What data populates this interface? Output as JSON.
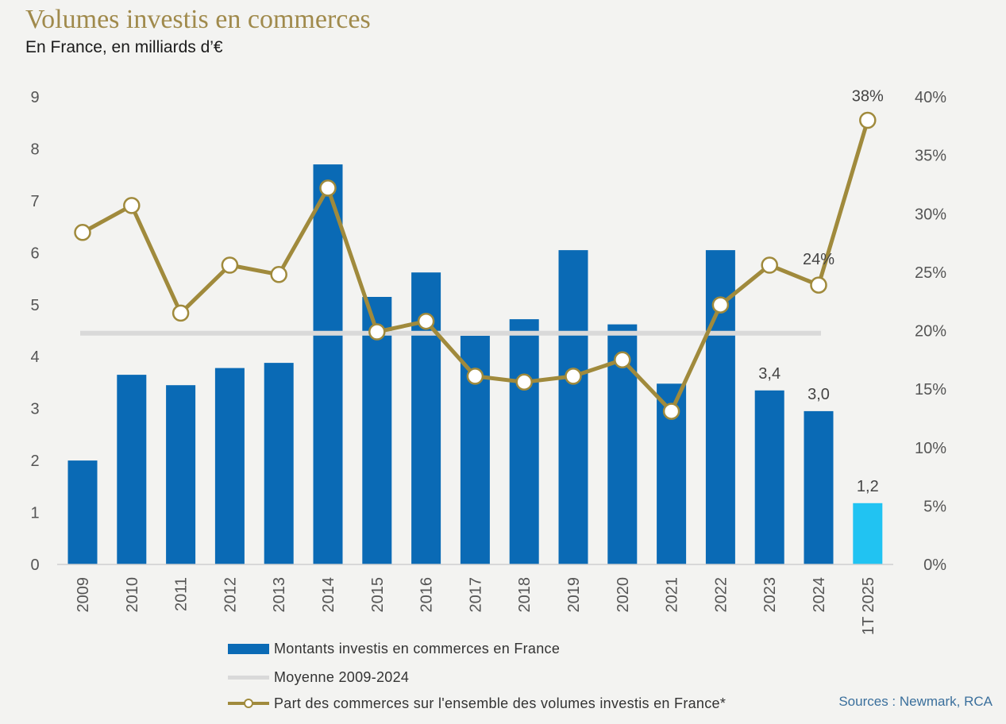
{
  "title": "Volumes investis en commerces",
  "subtitle": "En France, en milliards d’€",
  "source": "Sources : Newmark, RCA",
  "colors": {
    "bars": "#0a6ab5",
    "bar_highlight": "#21c3f2",
    "line": "#a08a3c",
    "average": "#d9d9d9",
    "title": "#a08a4c"
  },
  "chart_data": {
    "type": "bar",
    "categories": [
      "2009",
      "2010",
      "2011",
      "2012",
      "2013",
      "2014",
      "2015",
      "2016",
      "2017",
      "2018",
      "2019",
      "2020",
      "2021",
      "2022",
      "2023",
      "2024",
      "1T 2025"
    ],
    "ylim": [
      0,
      9
    ],
    "y_ticks": [
      "0",
      "1",
      "2",
      "3",
      "4",
      "5",
      "6",
      "7",
      "8",
      "9"
    ],
    "y2lim": [
      0,
      40
    ],
    "y2_ticks": [
      "0%",
      "5%",
      "10%",
      "15%",
      "20%",
      "25%",
      "30%",
      "35%",
      "40%"
    ],
    "legend_position": "bottom",
    "series": [
      {
        "name": "Montants investis en commerces en France",
        "type": "bar",
        "axis": "left",
        "values": [
          2.0,
          3.65,
          3.45,
          3.78,
          3.88,
          7.7,
          5.15,
          5.62,
          4.4,
          4.72,
          6.05,
          4.62,
          3.48,
          6.05,
          3.35,
          2.95,
          1.18
        ]
      },
      {
        "name": "Moyenne 2009-2024",
        "type": "line",
        "axis": "left",
        "value": 4.45,
        "x_range": [
          "2009",
          "2024"
        ]
      },
      {
        "name": "Part des commerces sur l'ensemble des volumes investis en France*",
        "type": "line",
        "axis": "right",
        "unit": "%",
        "values": [
          28.4,
          30.7,
          21.5,
          25.6,
          24.8,
          32.2,
          19.9,
          20.8,
          16.1,
          15.6,
          16.1,
          17.5,
          13.1,
          22.2,
          25.6,
          23.9,
          38.0
        ]
      }
    ],
    "data_labels": [
      {
        "series": 0,
        "category": "2023",
        "text": "3,4"
      },
      {
        "series": 0,
        "category": "2024",
        "text": "3,0"
      },
      {
        "series": 0,
        "category": "1T 2025",
        "text": "1,2"
      },
      {
        "series": 2,
        "category": "2024",
        "text": "24%"
      },
      {
        "series": 2,
        "category": "1T 2025",
        "text": "38%"
      }
    ]
  }
}
